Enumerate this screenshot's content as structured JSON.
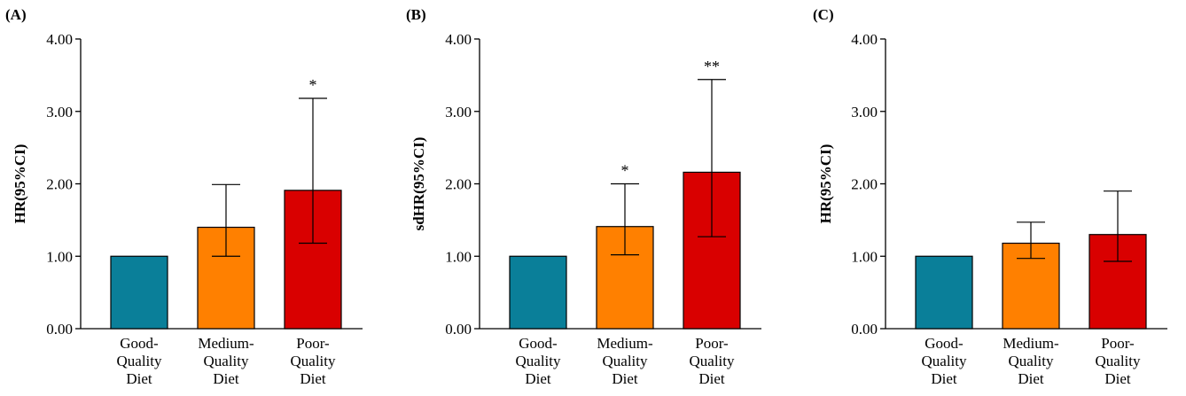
{
  "chart_data": [
    {
      "type": "bar",
      "panel": "(A)",
      "ylabel": "HR(95%CI)",
      "ylim": [
        0,
        4
      ],
      "yticks": [
        "0.00",
        "1.00",
        "2.00",
        "3.00",
        "4.00"
      ],
      "categories": [
        [
          "Good-",
          "Quality",
          "Diet"
        ],
        [
          "Medium-",
          "Quality",
          "Diet"
        ],
        [
          "Poor-",
          "Quality",
          "Diet"
        ]
      ],
      "values": [
        1.0,
        1.4,
        1.91
      ],
      "ci_low": [
        null,
        1.0,
        1.18
      ],
      "ci_high": [
        null,
        1.99,
        3.18
      ],
      "significance": [
        "",
        "",
        "*"
      ],
      "colors": [
        "#0a7f99",
        "#ff8000",
        "#d90000"
      ]
    },
    {
      "type": "bar",
      "panel": "(B)",
      "ylabel": "sdHR(95%CI)",
      "ylim": [
        0,
        4
      ],
      "yticks": [
        "0.00",
        "1.00",
        "2.00",
        "3.00",
        "4.00"
      ],
      "categories": [
        [
          "Good-",
          "Quality",
          "Diet"
        ],
        [
          "Medium-",
          "Quality",
          "Diet"
        ],
        [
          "Poor-",
          "Quality",
          "Diet"
        ]
      ],
      "values": [
        1.0,
        1.41,
        2.16
      ],
      "ci_low": [
        null,
        1.02,
        1.27
      ],
      "ci_high": [
        null,
        2.0,
        3.44
      ],
      "significance": [
        "",
        "*",
        "**"
      ],
      "colors": [
        "#0a7f99",
        "#ff8000",
        "#d90000"
      ]
    },
    {
      "type": "bar",
      "panel": "(C)",
      "ylabel": "HR(95%CI)",
      "ylim": [
        0,
        4
      ],
      "yticks": [
        "0.00",
        "1.00",
        "2.00",
        "3.00",
        "4.00"
      ],
      "categories": [
        [
          "Good-",
          "Quality",
          "Diet"
        ],
        [
          "Medium-",
          "Quality",
          "Diet"
        ],
        [
          "Poor-",
          "Quality",
          "Diet"
        ]
      ],
      "values": [
        1.0,
        1.18,
        1.3
      ],
      "ci_low": [
        null,
        0.97,
        0.93
      ],
      "ci_high": [
        null,
        1.47,
        1.9
      ],
      "significance": [
        "",
        "",
        ""
      ],
      "colors": [
        "#0a7f99",
        "#ff8000",
        "#d90000"
      ]
    }
  ]
}
